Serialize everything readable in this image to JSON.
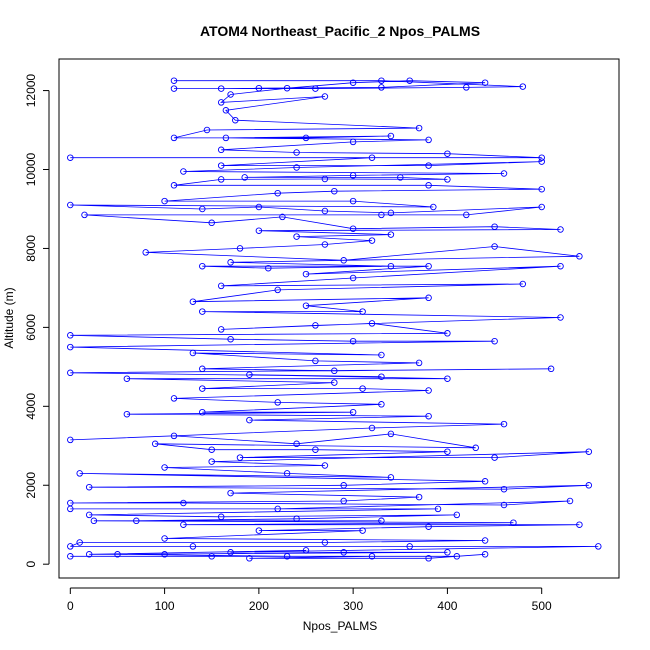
{
  "chart_data": {
    "type": "line",
    "title": "ATOM4 Northeast_Pacific_2 Npos_PALMS",
    "xlabel": "Npos_PALMS",
    "ylabel": "Altitude (m)",
    "xlim": [
      -12,
      582
    ],
    "ylim": [
      -350,
      12800
    ],
    "xticks": [
      0,
      100,
      200,
      300,
      400,
      500
    ],
    "yticks": [
      0,
      2000,
      4000,
      6000,
      8000,
      10000,
      12000
    ],
    "grid": false,
    "legend": "none",
    "colors": {
      "series": "#0000ff",
      "axes": "#000000",
      "background": "#ffffff"
    },
    "series": [
      {
        "marker": "open-circle",
        "points": [
          [
            110,
            12250
          ],
          [
            330,
            12250
          ],
          [
            480,
            12100
          ],
          [
            420,
            12080
          ],
          [
            260,
            12050
          ],
          [
            110,
            12050
          ],
          [
            160,
            12050
          ],
          [
            200,
            12060
          ],
          [
            330,
            12080
          ],
          [
            440,
            12200
          ],
          [
            360,
            12250
          ],
          [
            300,
            12200
          ],
          [
            230,
            12060
          ],
          [
            170,
            11900
          ],
          [
            160,
            11700
          ],
          [
            270,
            11850
          ],
          [
            165,
            11500
          ],
          [
            175,
            11250
          ],
          [
            370,
            11050
          ],
          [
            145,
            11000
          ],
          [
            110,
            10800
          ],
          [
            250,
            10800
          ],
          [
            340,
            10850
          ],
          [
            165,
            10800
          ],
          [
            380,
            10750
          ],
          [
            300,
            10700
          ],
          [
            160,
            10500
          ],
          [
            240,
            10430
          ],
          [
            400,
            10400
          ],
          [
            500,
            10300
          ],
          [
            0,
            10300
          ],
          [
            320,
            10300
          ],
          [
            160,
            10100
          ],
          [
            380,
            10100
          ],
          [
            500,
            10200
          ],
          [
            240,
            10050
          ],
          [
            120,
            9950
          ],
          [
            460,
            9900
          ],
          [
            300,
            9850
          ],
          [
            185,
            9800
          ],
          [
            350,
            9800
          ],
          [
            400,
            9750
          ],
          [
            270,
            9760
          ],
          [
            160,
            9750
          ],
          [
            110,
            9600
          ],
          [
            380,
            9600
          ],
          [
            500,
            9500
          ],
          [
            280,
            9450
          ],
          [
            220,
            9400
          ],
          [
            100,
            9200
          ],
          [
            300,
            9200
          ],
          [
            385,
            9050
          ],
          [
            0,
            9100
          ],
          [
            140,
            9000
          ],
          [
            200,
            9050
          ],
          [
            270,
            8950
          ],
          [
            340,
            8900
          ],
          [
            500,
            9050
          ],
          [
            420,
            8850
          ],
          [
            330,
            8850
          ],
          [
            15,
            8850
          ],
          [
            150,
            8650
          ],
          [
            225,
            8800
          ],
          [
            300,
            8500
          ],
          [
            450,
            8550
          ],
          [
            520,
            8480
          ],
          [
            200,
            8450
          ],
          [
            340,
            8350
          ],
          [
            240,
            8300
          ],
          [
            320,
            8200
          ],
          [
            270,
            8100
          ],
          [
            180,
            8000
          ],
          [
            80,
            7900
          ],
          [
            290,
            7700
          ],
          [
            450,
            8050
          ],
          [
            540,
            7800
          ],
          [
            170,
            7650
          ],
          [
            340,
            7550
          ],
          [
            210,
            7500
          ],
          [
            140,
            7550
          ],
          [
            380,
            7550
          ],
          [
            250,
            7350
          ],
          [
            520,
            7550
          ],
          [
            300,
            7250
          ],
          [
            160,
            7050
          ],
          [
            480,
            7100
          ],
          [
            220,
            6950
          ],
          [
            130,
            6650
          ],
          [
            380,
            6750
          ],
          [
            250,
            6550
          ],
          [
            310,
            6400
          ],
          [
            140,
            6400
          ],
          [
            520,
            6250
          ],
          [
            260,
            6050
          ],
          [
            160,
            5950
          ],
          [
            320,
            6100
          ],
          [
            400,
            5850
          ],
          [
            0,
            5800
          ],
          [
            170,
            5700
          ],
          [
            300,
            5650
          ],
          [
            450,
            5650
          ],
          [
            0,
            5500
          ],
          [
            330,
            5300
          ],
          [
            130,
            5350
          ],
          [
            260,
            5150
          ],
          [
            370,
            5100
          ],
          [
            140,
            4950
          ],
          [
            280,
            4900
          ],
          [
            510,
            4950
          ],
          [
            0,
            4850
          ],
          [
            330,
            4750
          ],
          [
            190,
            4800
          ],
          [
            400,
            4700
          ],
          [
            60,
            4700
          ],
          [
            280,
            4600
          ],
          [
            140,
            4450
          ],
          [
            310,
            4450
          ],
          [
            380,
            4400
          ],
          [
            110,
            4200
          ],
          [
            220,
            4100
          ],
          [
            330,
            4050
          ],
          [
            140,
            3850
          ],
          [
            300,
            3850
          ],
          [
            60,
            3800
          ],
          [
            380,
            3750
          ],
          [
            190,
            3650
          ],
          [
            460,
            3550
          ],
          [
            320,
            3450
          ],
          [
            0,
            3150
          ],
          [
            110,
            3250
          ],
          [
            240,
            3050
          ],
          [
            340,
            3300
          ],
          [
            430,
            2950
          ],
          [
            90,
            3050
          ],
          [
            150,
            2900
          ],
          [
            260,
            2900
          ],
          [
            400,
            2850
          ],
          [
            180,
            2700
          ],
          [
            450,
            2700
          ],
          [
            550,
            2850
          ],
          [
            150,
            2600
          ],
          [
            270,
            2500
          ],
          [
            100,
            2450
          ],
          [
            230,
            2300
          ],
          [
            340,
            2200
          ],
          [
            10,
            2300
          ],
          [
            440,
            2100
          ],
          [
            290,
            2000
          ],
          [
            20,
            1950
          ],
          [
            460,
            1900
          ],
          [
            550,
            2000
          ],
          [
            170,
            1800
          ],
          [
            370,
            1700
          ],
          [
            290,
            1600
          ],
          [
            0,
            1550
          ],
          [
            120,
            1550
          ],
          [
            460,
            1500
          ],
          [
            530,
            1600
          ],
          [
            220,
            1400
          ],
          [
            0,
            1400
          ],
          [
            390,
            1400
          ],
          [
            20,
            1250
          ],
          [
            160,
            1200
          ],
          [
            410,
            1250
          ],
          [
            240,
            1150
          ],
          [
            70,
            1100
          ],
          [
            330,
            1100
          ],
          [
            25,
            1100
          ],
          [
            470,
            1050
          ],
          [
            120,
            1000
          ],
          [
            540,
            1000
          ],
          [
            380,
            950
          ],
          [
            200,
            850
          ],
          [
            310,
            850
          ],
          [
            100,
            650
          ],
          [
            440,
            600
          ],
          [
            270,
            550
          ],
          [
            10,
            550
          ],
          [
            0,
            450
          ],
          [
            130,
            450
          ],
          [
            360,
            450
          ],
          [
            560,
            450
          ],
          [
            170,
            300
          ],
          [
            250,
            350
          ],
          [
            20,
            250
          ],
          [
            100,
            250
          ],
          [
            290,
            300
          ],
          [
            400,
            300
          ],
          [
            50,
            250
          ],
          [
            230,
            200
          ],
          [
            410,
            200
          ],
          [
            0,
            200
          ],
          [
            150,
            200
          ],
          [
            320,
            200
          ],
          [
            190,
            150
          ],
          [
            380,
            150
          ],
          [
            440,
            250
          ]
        ]
      }
    ]
  }
}
